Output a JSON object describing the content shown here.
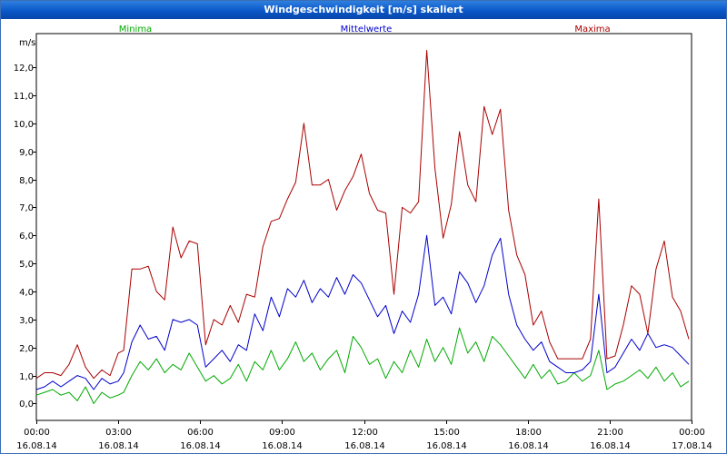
{
  "chart_data": {
    "type": "line",
    "title": "Windgeschwindigkeit [m/s] skaliert",
    "ylabel": "m/s",
    "ylim": [
      -0.6,
      13.2
    ],
    "y_ticks": [
      {
        "v": 0,
        "label": "0,0"
      },
      {
        "v": 1,
        "label": "1,0"
      },
      {
        "v": 2,
        "label": "2,0"
      },
      {
        "v": 3,
        "label": "3,0"
      },
      {
        "v": 4,
        "label": "4,0"
      },
      {
        "v": 5,
        "label": "5,0"
      },
      {
        "v": 6,
        "label": "6,0"
      },
      {
        "v": 7,
        "label": "7,0"
      },
      {
        "v": 8,
        "label": "8,0"
      },
      {
        "v": 9,
        "label": "9,0"
      },
      {
        "v": 10,
        "label": "10,0"
      },
      {
        "v": 11,
        "label": "11,0"
      },
      {
        "v": 12,
        "label": "12,0"
      }
    ],
    "xlim": [
      0,
      24
    ],
    "x_ticks": [
      {
        "v": 0,
        "time": "00:00",
        "date": "16.08.14"
      },
      {
        "v": 3,
        "time": "03:00",
        "date": "16.08.14"
      },
      {
        "v": 6,
        "time": "06:00",
        "date": "16.08.14"
      },
      {
        "v": 9,
        "time": "09:00",
        "date": "16.08.14"
      },
      {
        "v": 12,
        "time": "12:00",
        "date": "16.08.14"
      },
      {
        "v": 15,
        "time": "15:00",
        "date": "16.08.14"
      },
      {
        "v": 18,
        "time": "18:00",
        "date": "16.08.14"
      },
      {
        "v": 21,
        "time": "21:00",
        "date": "16.08.14"
      },
      {
        "v": 24,
        "time": "00:00",
        "date": "17.08.14"
      }
    ],
    "x_unit": "hours",
    "series": [
      {
        "name": "Minima",
        "color": "#00aa00",
        "points": [
          [
            0,
            0.3
          ],
          [
            0.3,
            0.4
          ],
          [
            0.6,
            0.5
          ],
          [
            0.9,
            0.3
          ],
          [
            1.2,
            0.4
          ],
          [
            1.5,
            0.1
          ],
          [
            1.8,
            0.6
          ],
          [
            2.1,
            0.0
          ],
          [
            2.4,
            0.4
          ],
          [
            2.7,
            0.2
          ],
          [
            3.0,
            0.3
          ],
          [
            3.2,
            0.4
          ],
          [
            3.5,
            1.0
          ],
          [
            3.8,
            1.5
          ],
          [
            4.1,
            1.2
          ],
          [
            4.4,
            1.6
          ],
          [
            4.7,
            1.1
          ],
          [
            5.0,
            1.4
          ],
          [
            5.3,
            1.2
          ],
          [
            5.6,
            1.8
          ],
          [
            5.9,
            1.3
          ],
          [
            6.2,
            0.8
          ],
          [
            6.5,
            1.0
          ],
          [
            6.8,
            0.7
          ],
          [
            7.1,
            0.9
          ],
          [
            7.4,
            1.4
          ],
          [
            7.7,
            0.8
          ],
          [
            8.0,
            1.5
          ],
          [
            8.3,
            1.2
          ],
          [
            8.6,
            1.9
          ],
          [
            8.9,
            1.2
          ],
          [
            9.2,
            1.6
          ],
          [
            9.5,
            2.2
          ],
          [
            9.8,
            1.5
          ],
          [
            10.1,
            1.8
          ],
          [
            10.4,
            1.2
          ],
          [
            10.7,
            1.6
          ],
          [
            11.0,
            1.9
          ],
          [
            11.3,
            1.1
          ],
          [
            11.6,
            2.4
          ],
          [
            11.9,
            2.0
          ],
          [
            12.2,
            1.4
          ],
          [
            12.5,
            1.6
          ],
          [
            12.8,
            0.9
          ],
          [
            13.1,
            1.5
          ],
          [
            13.4,
            1.1
          ],
          [
            13.7,
            1.9
          ],
          [
            14.0,
            1.3
          ],
          [
            14.3,
            2.3
          ],
          [
            14.6,
            1.5
          ],
          [
            14.9,
            2.0
          ],
          [
            15.2,
            1.4
          ],
          [
            15.5,
            2.7
          ],
          [
            15.8,
            1.8
          ],
          [
            16.1,
            2.2
          ],
          [
            16.4,
            1.5
          ],
          [
            16.7,
            2.4
          ],
          [
            17.0,
            2.1
          ],
          [
            17.3,
            1.7
          ],
          [
            17.6,
            1.3
          ],
          [
            17.9,
            0.9
          ],
          [
            18.2,
            1.4
          ],
          [
            18.5,
            0.9
          ],
          [
            18.8,
            1.2
          ],
          [
            19.1,
            0.7
          ],
          [
            19.4,
            0.8
          ],
          [
            19.7,
            1.1
          ],
          [
            20.0,
            0.8
          ],
          [
            20.3,
            1.0
          ],
          [
            20.6,
            1.9
          ],
          [
            20.9,
            0.5
          ],
          [
            21.2,
            0.7
          ],
          [
            21.5,
            0.8
          ],
          [
            21.8,
            1.0
          ],
          [
            22.1,
            1.2
          ],
          [
            22.4,
            0.9
          ],
          [
            22.7,
            1.3
          ],
          [
            23.0,
            0.8
          ],
          [
            23.3,
            1.1
          ],
          [
            23.6,
            0.6
          ],
          [
            23.9,
            0.8
          ]
        ]
      },
      {
        "name": "Mittelwerte",
        "color": "#0000cc",
        "points": [
          [
            0,
            0.5
          ],
          [
            0.3,
            0.6
          ],
          [
            0.6,
            0.8
          ],
          [
            0.9,
            0.6
          ],
          [
            1.2,
            0.8
          ],
          [
            1.5,
            1.0
          ],
          [
            1.8,
            0.9
          ],
          [
            2.1,
            0.5
          ],
          [
            2.4,
            0.9
          ],
          [
            2.7,
            0.7
          ],
          [
            3.0,
            0.8
          ],
          [
            3.2,
            1.1
          ],
          [
            3.5,
            2.2
          ],
          [
            3.8,
            2.8
          ],
          [
            4.1,
            2.3
          ],
          [
            4.4,
            2.4
          ],
          [
            4.7,
            1.9
          ],
          [
            5.0,
            3.0
          ],
          [
            5.3,
            2.9
          ],
          [
            5.6,
            3.0
          ],
          [
            5.9,
            2.8
          ],
          [
            6.2,
            1.3
          ],
          [
            6.5,
            1.6
          ],
          [
            6.8,
            1.9
          ],
          [
            7.1,
            1.5
          ],
          [
            7.4,
            2.1
          ],
          [
            7.7,
            1.9
          ],
          [
            8.0,
            3.2
          ],
          [
            8.3,
            2.6
          ],
          [
            8.6,
            3.8
          ],
          [
            8.9,
            3.1
          ],
          [
            9.2,
            4.1
          ],
          [
            9.5,
            3.8
          ],
          [
            9.8,
            4.4
          ],
          [
            10.1,
            3.6
          ],
          [
            10.4,
            4.1
          ],
          [
            10.7,
            3.8
          ],
          [
            11.0,
            4.5
          ],
          [
            11.3,
            3.9
          ],
          [
            11.6,
            4.6
          ],
          [
            11.9,
            4.3
          ],
          [
            12.2,
            3.7
          ],
          [
            12.5,
            3.1
          ],
          [
            12.8,
            3.5
          ],
          [
            13.1,
            2.5
          ],
          [
            13.4,
            3.3
          ],
          [
            13.7,
            2.9
          ],
          [
            14.0,
            3.9
          ],
          [
            14.3,
            6.0
          ],
          [
            14.6,
            3.5
          ],
          [
            14.9,
            3.8
          ],
          [
            15.2,
            3.2
          ],
          [
            15.5,
            4.7
          ],
          [
            15.8,
            4.3
          ],
          [
            16.1,
            3.6
          ],
          [
            16.4,
            4.2
          ],
          [
            16.7,
            5.3
          ],
          [
            17.0,
            5.9
          ],
          [
            17.3,
            3.9
          ],
          [
            17.6,
            2.8
          ],
          [
            17.9,
            2.3
          ],
          [
            18.2,
            1.9
          ],
          [
            18.5,
            2.2
          ],
          [
            18.8,
            1.5
          ],
          [
            19.1,
            1.3
          ],
          [
            19.4,
            1.1
          ],
          [
            19.7,
            1.1
          ],
          [
            20.0,
            1.2
          ],
          [
            20.3,
            1.5
          ],
          [
            20.6,
            3.9
          ],
          [
            20.9,
            1.1
          ],
          [
            21.2,
            1.3
          ],
          [
            21.5,
            1.8
          ],
          [
            21.8,
            2.3
          ],
          [
            22.1,
            1.9
          ],
          [
            22.4,
            2.5
          ],
          [
            22.7,
            2.0
          ],
          [
            23.0,
            2.1
          ],
          [
            23.3,
            2.0
          ],
          [
            23.6,
            1.7
          ],
          [
            23.9,
            1.4
          ]
        ]
      },
      {
        "name": "Maxima",
        "color": "#aa0000",
        "points": [
          [
            0,
            0.9
          ],
          [
            0.3,
            1.1
          ],
          [
            0.6,
            1.1
          ],
          [
            0.9,
            1.0
          ],
          [
            1.2,
            1.4
          ],
          [
            1.5,
            2.1
          ],
          [
            1.8,
            1.3
          ],
          [
            2.1,
            0.9
          ],
          [
            2.4,
            1.2
          ],
          [
            2.7,
            1.0
          ],
          [
            3.0,
            1.8
          ],
          [
            3.2,
            1.9
          ],
          [
            3.5,
            4.8
          ],
          [
            3.8,
            4.8
          ],
          [
            4.1,
            4.9
          ],
          [
            4.4,
            4.0
          ],
          [
            4.7,
            3.7
          ],
          [
            5.0,
            6.3
          ],
          [
            5.3,
            5.2
          ],
          [
            5.6,
            5.8
          ],
          [
            5.9,
            5.7
          ],
          [
            6.2,
            2.1
          ],
          [
            6.5,
            3.0
          ],
          [
            6.8,
            2.8
          ],
          [
            7.1,
            3.5
          ],
          [
            7.4,
            2.9
          ],
          [
            7.7,
            3.9
          ],
          [
            8.0,
            3.8
          ],
          [
            8.3,
            5.6
          ],
          [
            8.6,
            6.5
          ],
          [
            8.9,
            6.6
          ],
          [
            9.2,
            7.3
          ],
          [
            9.5,
            7.9
          ],
          [
            9.8,
            10.0
          ],
          [
            10.1,
            7.8
          ],
          [
            10.4,
            7.8
          ],
          [
            10.7,
            8.0
          ],
          [
            11.0,
            6.9
          ],
          [
            11.3,
            7.6
          ],
          [
            11.6,
            8.1
          ],
          [
            11.9,
            8.9
          ],
          [
            12.2,
            7.5
          ],
          [
            12.5,
            6.9
          ],
          [
            12.8,
            6.8
          ],
          [
            13.1,
            3.9
          ],
          [
            13.4,
            7.0
          ],
          [
            13.7,
            6.8
          ],
          [
            14.0,
            7.2
          ],
          [
            14.3,
            12.6
          ],
          [
            14.6,
            8.4
          ],
          [
            14.9,
            5.9
          ],
          [
            15.2,
            7.1
          ],
          [
            15.5,
            9.7
          ],
          [
            15.8,
            7.8
          ],
          [
            16.1,
            7.2
          ],
          [
            16.4,
            10.6
          ],
          [
            16.7,
            9.6
          ],
          [
            17.0,
            10.5
          ],
          [
            17.3,
            6.9
          ],
          [
            17.6,
            5.3
          ],
          [
            17.9,
            4.6
          ],
          [
            18.2,
            2.8
          ],
          [
            18.5,
            3.3
          ],
          [
            18.8,
            2.2
          ],
          [
            19.1,
            1.6
          ],
          [
            19.4,
            1.6
          ],
          [
            19.7,
            1.6
          ],
          [
            20.0,
            1.6
          ],
          [
            20.3,
            2.3
          ],
          [
            20.6,
            7.3
          ],
          [
            20.9,
            1.6
          ],
          [
            21.2,
            1.7
          ],
          [
            21.5,
            2.8
          ],
          [
            21.8,
            4.2
          ],
          [
            22.1,
            3.9
          ],
          [
            22.4,
            2.5
          ],
          [
            22.7,
            4.8
          ],
          [
            23.0,
            5.8
          ],
          [
            23.3,
            3.8
          ],
          [
            23.6,
            3.3
          ],
          [
            23.9,
            2.3
          ]
        ]
      }
    ]
  }
}
